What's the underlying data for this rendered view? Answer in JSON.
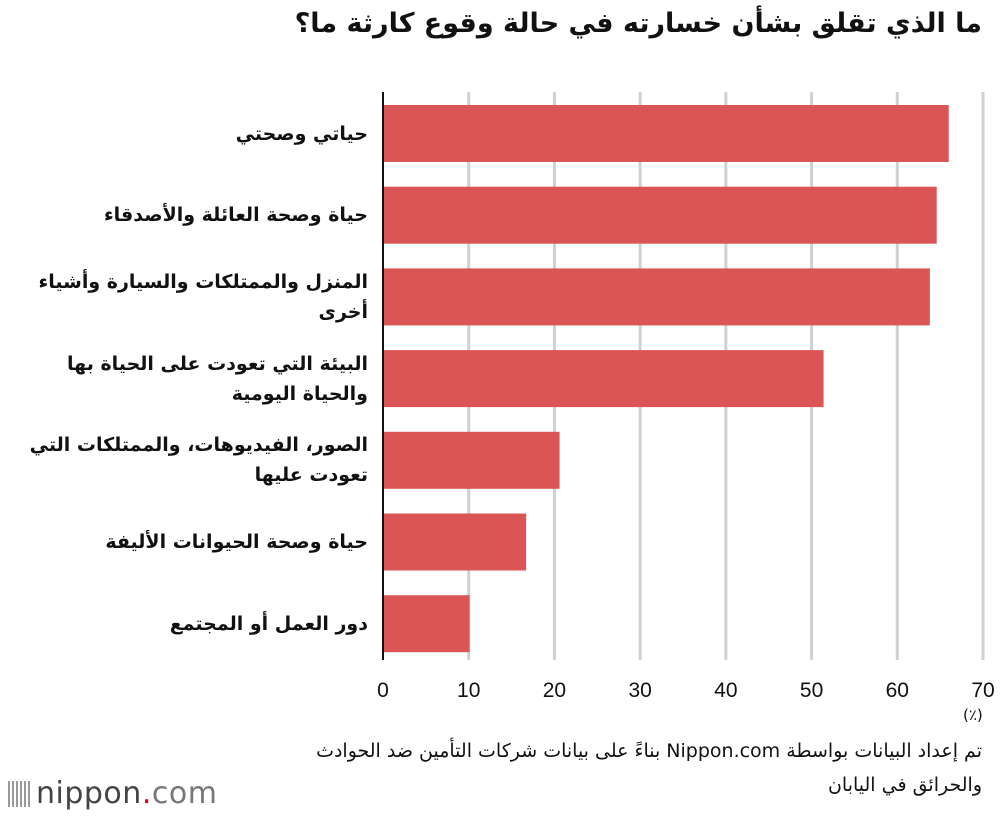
{
  "chart_data": {
    "type": "bar",
    "orientation": "horizontal",
    "title": "ما الذي تقلق بشأن خسارته في حالة وقوع كارثة ما؟",
    "categories": [
      "حياتي وصحتي",
      "حياة وصحة العائلة والأصدقاء",
      "المنزل والممتلكات والسيارة وأشياء أخرى",
      "البيئة التي تعودت على الحياة بها والحياة اليومية",
      "الصور، الفيديوهات، والممتلكات التي تعودت عليها",
      "حياة وصحة الحيوانات الأليفة",
      "دور العمل أو المجتمع"
    ],
    "values": [
      66.0,
      64.6,
      63.8,
      51.4,
      20.6,
      16.7,
      10.1
    ],
    "xlim": [
      0,
      70
    ],
    "xticks": [
      "0",
      "10",
      "20",
      "30",
      "40",
      "50",
      "60",
      "70"
    ],
    "xlabel": "(٪)",
    "grid": true,
    "bar_color": "#d95556"
  },
  "source": "تم إعداد البيانات بواسطة Nippon.com بناءً على بيانات شركات التأمين ضد الحوادث والحرائق في اليابان",
  "logo": {
    "text": "nippon",
    "dot": ".",
    "suffix": "com"
  }
}
